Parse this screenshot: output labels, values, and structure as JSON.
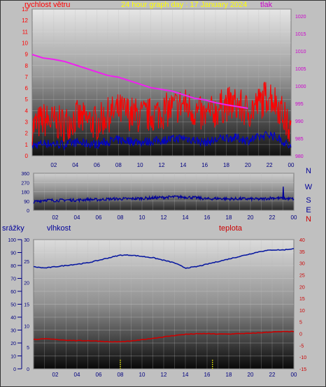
{
  "header": {
    "wind_label": "rychlost větru",
    "graph_title": "24 hour graph day : 17 January 2024",
    "pressure_label": "tlak"
  },
  "bottom_labels": {
    "rain": "srážky",
    "humidity": "vlhkost",
    "temperature": "teplota"
  },
  "direction_labels": [
    "N",
    "W",
    "S",
    "E",
    "N"
  ],
  "colors": {
    "wind_speed": "#ff0000",
    "wind_gust_base": "#0000cc",
    "pressure": "#ee22ee",
    "wind_direction": "#000099",
    "humidity": "#0a1aa0",
    "temperature": "#cc0000",
    "rain": "#ffff00",
    "wind_axis": "#ff0000",
    "pressure_axis": "#cc00cc",
    "humidity_axis": "#000099",
    "temperature_axis": "#cc0000",
    "title": "#ffff00"
  },
  "chart_data": [
    {
      "type": "line",
      "x_ticks": [
        "02",
        "04",
        "06",
        "08",
        "10",
        "12",
        "14",
        "16",
        "18",
        "20",
        "22",
        "00"
      ],
      "y_left_ticks": [
        "0",
        "1",
        "2",
        "3",
        "4",
        "5",
        "6",
        "7",
        "8",
        "9",
        "10",
        "11",
        "12",
        "13"
      ],
      "y_right_ticks": [
        "980",
        "985",
        "990",
        "995",
        "1000",
        "1005",
        "1010",
        "1015",
        "1020"
      ],
      "y_left_range": [
        0,
        13
      ],
      "y_right_range": [
        980,
        1022
      ],
      "series": [
        {
          "name": "rychlost větru",
          "axis": "left",
          "points": [
            [
              0,
              2.5
            ],
            [
              1,
              3.2
            ],
            [
              2,
              3.0
            ],
            [
              3,
              2.8
            ],
            [
              4,
              3.4
            ],
            [
              5,
              3.1
            ],
            [
              6,
              2.9
            ],
            [
              7,
              3.6
            ],
            [
              8,
              4.0
            ],
            [
              9,
              3.8
            ],
            [
              10,
              3.5
            ],
            [
              11,
              3.6
            ],
            [
              12,
              3.9
            ],
            [
              13,
              4.2
            ],
            [
              14,
              4.6
            ],
            [
              15,
              4.0
            ],
            [
              16,
              3.4
            ],
            [
              17,
              4.0
            ],
            [
              18,
              4.6
            ],
            [
              19,
              4.5
            ],
            [
              20,
              3.9
            ],
            [
              21,
              4.6
            ],
            [
              22,
              5.5
            ],
            [
              23,
              4.2
            ],
            [
              24,
              2.0
            ]
          ]
        },
        {
          "name": "tlak",
          "axis": "right",
          "points": [
            [
              0,
              1009
            ],
            [
              1,
              1008
            ],
            [
              2,
              1007.6
            ],
            [
              3,
              1007
            ],
            [
              4,
              1006
            ],
            [
              5,
              1005
            ],
            [
              6,
              1004
            ],
            [
              7,
              1003
            ],
            [
              8,
              1002.5
            ],
            [
              9,
              1001.5
            ],
            [
              10,
              1000.5
            ],
            [
              11,
              999.5
            ],
            [
              12,
              999
            ],
            [
              13,
              998.5
            ],
            [
              14,
              997.5
            ],
            [
              15,
              996.5
            ],
            [
              16,
              996
            ],
            [
              17,
              995.2
            ],
            [
              18,
              994.6
            ],
            [
              19,
              994.1
            ],
            [
              20,
              993.6
            ]
          ]
        }
      ]
    },
    {
      "type": "line",
      "x_ticks": [
        "02",
        "04",
        "06",
        "08",
        "10",
        "12",
        "14",
        "16",
        "18",
        "20",
        "22",
        "00"
      ],
      "y_ticks": [
        "0",
        "90",
        "180",
        "270",
        "360"
      ],
      "y_range": [
        0,
        360
      ],
      "series": [
        {
          "name": "wind direction",
          "points": [
            [
              0,
              80
            ],
            [
              1,
              100
            ],
            [
              2,
              95
            ],
            [
              3,
              100
            ],
            [
              4,
              98
            ],
            [
              5,
              105
            ],
            [
              6,
              102
            ],
            [
              7,
              110
            ],
            [
              8,
              110
            ],
            [
              9,
              112
            ],
            [
              10,
              115
            ],
            [
              11,
              120
            ],
            [
              12,
              125
            ],
            [
              13,
              130
            ],
            [
              14,
              128
            ],
            [
              15,
              122
            ],
            [
              16,
              110
            ],
            [
              17,
              115
            ],
            [
              18,
              110
            ],
            [
              19,
              112
            ],
            [
              20,
              110
            ],
            [
              21,
              108
            ],
            [
              22,
              120
            ],
            [
              23,
              115
            ],
            [
              24,
              110
            ]
          ]
        }
      ]
    },
    {
      "type": "line",
      "x_ticks": [
        "02",
        "04",
        "06",
        "08",
        "10",
        "12",
        "14",
        "16",
        "18",
        "20",
        "22",
        "00"
      ],
      "y_rain_ticks": [
        "0",
        "10",
        "20",
        "30",
        "40",
        "50",
        "60",
        "70",
        "80",
        "90",
        "100"
      ],
      "y_humidity_ticks": [
        "0",
        "5",
        "10",
        "15",
        "20",
        "25",
        "30"
      ],
      "y_temp_ticks": [
        "-15",
        "-10",
        "-5",
        "0",
        "5",
        "10",
        "15",
        "20",
        "25",
        "30",
        "35",
        "40"
      ],
      "y_rain_range": [
        0,
        100
      ],
      "y_temp_range": [
        -15,
        40
      ],
      "series": [
        {
          "name": "vlhkost",
          "axis": "rain",
          "points": [
            [
              0,
              79
            ],
            [
              1,
              78
            ],
            [
              2,
              79
            ],
            [
              3,
              80
            ],
            [
              4,
              81
            ],
            [
              5,
              82
            ],
            [
              6,
              84
            ],
            [
              7,
              86
            ],
            [
              8,
              88
            ],
            [
              9,
              88
            ],
            [
              10,
              87
            ],
            [
              11,
              86
            ],
            [
              12,
              84
            ],
            [
              13,
              82
            ],
            [
              14,
              78
            ],
            [
              15,
              79
            ],
            [
              16,
              81
            ],
            [
              17,
              83
            ],
            [
              18,
              85
            ],
            [
              19,
              87
            ],
            [
              20,
              89
            ],
            [
              21,
              91
            ],
            [
              22,
              92
            ],
            [
              23,
              92
            ],
            [
              24,
              93
            ]
          ]
        },
        {
          "name": "teplota",
          "axis": "temp",
          "points": [
            [
              0,
              -2.5
            ],
            [
              1,
              -2.2
            ],
            [
              2,
              -2.5
            ],
            [
              3,
              -2.8
            ],
            [
              4,
              -3.0
            ],
            [
              5,
              -3.0
            ],
            [
              6,
              -3.2
            ],
            [
              7,
              -3.5
            ],
            [
              8,
              -3.5
            ],
            [
              9,
              -3.2
            ],
            [
              10,
              -2.6
            ],
            [
              11,
              -2.0
            ],
            [
              12,
              -1.4
            ],
            [
              13,
              -0.8
            ],
            [
              14,
              -0.3
            ],
            [
              15,
              -0.1
            ],
            [
              16,
              0.0
            ],
            [
              17,
              -0.2
            ],
            [
              18,
              -0.2
            ],
            [
              19,
              0.0
            ],
            [
              20,
              0.1
            ],
            [
              21,
              0.4
            ],
            [
              22,
              0.7
            ],
            [
              23,
              0.8
            ],
            [
              24,
              0.9
            ]
          ]
        },
        {
          "name": "srážky",
          "axis": "rain",
          "points": [
            [
              8,
              1
            ],
            [
              16.5,
              1
            ]
          ]
        }
      ]
    }
  ]
}
